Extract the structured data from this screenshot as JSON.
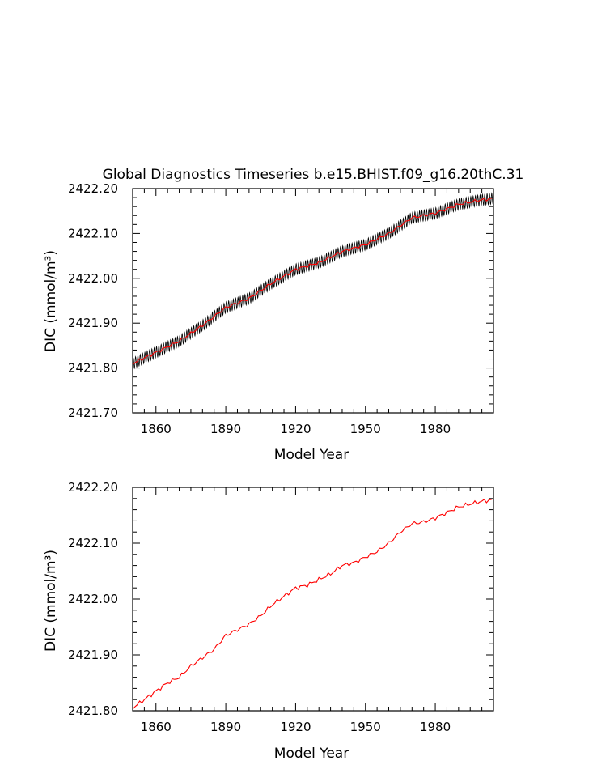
{
  "chart_data": [
    {
      "type": "line",
      "title": "Global Diagnostics Timeseries b.e15.BHIST.f09_g16.20thC.31",
      "xlabel": "Model Year",
      "ylabel": "DIC (mmol/m³)",
      "xlim": [
        1850,
        2005
      ],
      "ylim": [
        2421.7,
        2422.2
      ],
      "xticks": [
        1860,
        1890,
        1920,
        1950,
        1980
      ],
      "xtick_labels": [
        "1860",
        "1890",
        "1920",
        "1950",
        "1980"
      ],
      "yticks": [
        2421.7,
        2421.8,
        2421.9,
        2422.0,
        2422.1,
        2422.2
      ],
      "ytick_labels": [
        "2421.70",
        "2421.80",
        "2421.90",
        "2422.00",
        "2422.10",
        "2422.20"
      ],
      "grid": false,
      "series": [
        {
          "color": "#000000",
          "style": "monthly",
          "seasonal_amplitude": 0.012,
          "x": [
            1850,
            1860,
            1870,
            1880,
            1890,
            1900,
            1910,
            1920,
            1930,
            1940,
            1950,
            1960,
            1970,
            1980,
            1990,
            2000,
            2005
          ],
          "y": [
            2421.81,
            2421.835,
            2421.86,
            2421.895,
            2421.935,
            2421.955,
            2421.99,
            2422.02,
            2422.035,
            2422.06,
            2422.075,
            2422.1,
            2422.135,
            2422.145,
            2422.165,
            2422.175,
            2422.178
          ]
        },
        {
          "color": "#ff0000",
          "style": "annual",
          "x": [
            1850,
            1860,
            1870,
            1880,
            1890,
            1900,
            1910,
            1920,
            1930,
            1940,
            1950,
            1960,
            1970,
            1980,
            1990,
            2000,
            2005
          ],
          "y": [
            2421.81,
            2421.835,
            2421.86,
            2421.895,
            2421.935,
            2421.955,
            2421.99,
            2422.02,
            2422.035,
            2422.06,
            2422.075,
            2422.1,
            2422.135,
            2422.145,
            2422.165,
            2422.175,
            2422.178
          ]
        }
      ]
    },
    {
      "type": "line",
      "title": "",
      "xlabel": "Model Year",
      "ylabel": "DIC (mmol/m³)",
      "xlim": [
        1850,
        2005
      ],
      "ylim": [
        2421.8,
        2422.2
      ],
      "xticks": [
        1860,
        1890,
        1920,
        1950,
        1980
      ],
      "xtick_labels": [
        "1860",
        "1890",
        "1920",
        "1950",
        "1980"
      ],
      "yticks": [
        2421.8,
        2421.9,
        2422.0,
        2422.1,
        2422.2
      ],
      "ytick_labels": [
        "2421.80",
        "2421.90",
        "2422.00",
        "2422.10",
        "2422.20"
      ],
      "grid": false,
      "series": [
        {
          "color": "#ff0000",
          "style": "annual",
          "x": [
            1850,
            1855,
            1860,
            1865,
            1870,
            1875,
            1880,
            1885,
            1890,
            1895,
            1900,
            1905,
            1910,
            1915,
            1920,
            1925,
            1930,
            1935,
            1940,
            1945,
            1950,
            1955,
            1960,
            1965,
            1970,
            1975,
            1980,
            1985,
            1990,
            1995,
            2000,
            2005
          ],
          "y": [
            2421.805,
            2421.82,
            2421.835,
            2421.85,
            2421.86,
            2421.88,
            2421.895,
            2421.91,
            2421.935,
            2421.945,
            2421.955,
            2421.97,
            2421.99,
            2422.005,
            2422.02,
            2422.025,
            2422.035,
            2422.045,
            2422.06,
            2422.065,
            2422.075,
            2422.085,
            2422.1,
            2422.12,
            2422.135,
            2422.138,
            2422.145,
            2422.155,
            2422.165,
            2422.17,
            2422.175,
            2422.178
          ]
        }
      ]
    }
  ]
}
